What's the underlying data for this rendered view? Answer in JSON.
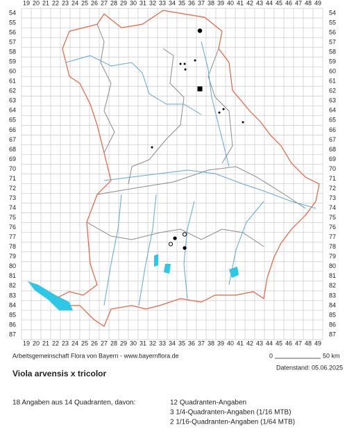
{
  "map": {
    "columns": [
      "19",
      "20",
      "21",
      "22",
      "23",
      "24",
      "25",
      "26",
      "27",
      "28",
      "29",
      "30",
      "31",
      "32",
      "33",
      "34",
      "35",
      "36",
      "37",
      "38",
      "39",
      "40",
      "41",
      "42",
      "43",
      "44",
      "45",
      "46",
      "47",
      "48",
      "49"
    ],
    "rows": [
      "54",
      "55",
      "56",
      "57",
      "58",
      "59",
      "60",
      "61",
      "62",
      "63",
      "64",
      "65",
      "66",
      "67",
      "68",
      "69",
      "70",
      "71",
      "72",
      "73",
      "74",
      "75",
      "76",
      "77",
      "78",
      "79",
      "80",
      "81",
      "82",
      "83",
      "84",
      "85",
      "86",
      "87"
    ],
    "points": [
      {
        "x": 36.86,
        "y": 55.8,
        "symbol": "large-dot"
      },
      {
        "x": 34.86,
        "y": 59.2,
        "symbol": "dot"
      },
      {
        "x": 35.29,
        "y": 59.2,
        "symbol": "dot"
      },
      {
        "x": 36.36,
        "y": 58.85,
        "symbol": "dot"
      },
      {
        "x": 35.36,
        "y": 59.77,
        "symbol": "dot"
      },
      {
        "x": 36.86,
        "y": 61.77,
        "symbol": "square"
      },
      {
        "x": 39.29,
        "y": 63.84,
        "symbol": "dot"
      },
      {
        "x": 38.86,
        "y": 64.2,
        "symbol": "dot"
      },
      {
        "x": 41.29,
        "y": 65.19,
        "symbol": "dot"
      },
      {
        "x": 31.93,
        "y": 67.76,
        "symbol": "dot"
      },
      {
        "x": 35.29,
        "y": 76.7,
        "symbol": "open-circle"
      },
      {
        "x": 34.29,
        "y": 77.1,
        "symbol": "circle"
      },
      {
        "x": 33.86,
        "y": 77.7,
        "symbol": "open-circle"
      },
      {
        "x": 35.29,
        "y": 78.1,
        "symbol": "circle"
      }
    ]
  },
  "footer": {
    "credit": "Arbeitsgemeinschaft Flora von Bayern - www.bayernflora.de",
    "scale_start": "0",
    "scale_end": "50 km",
    "date": "Datenstand: 05.06.2025"
  },
  "title": "Viola arvensis x tricolor",
  "summary": {
    "total": "18 Angaben aus 14 Quadranten, davon:",
    "lines": [
      "12 Quadranten-Angaben",
      "3 1/4-Quadranten-Angaben (1/16 MTB)",
      "2 1/16-Quadranten-Angaben (1/64 MTB)"
    ]
  }
}
